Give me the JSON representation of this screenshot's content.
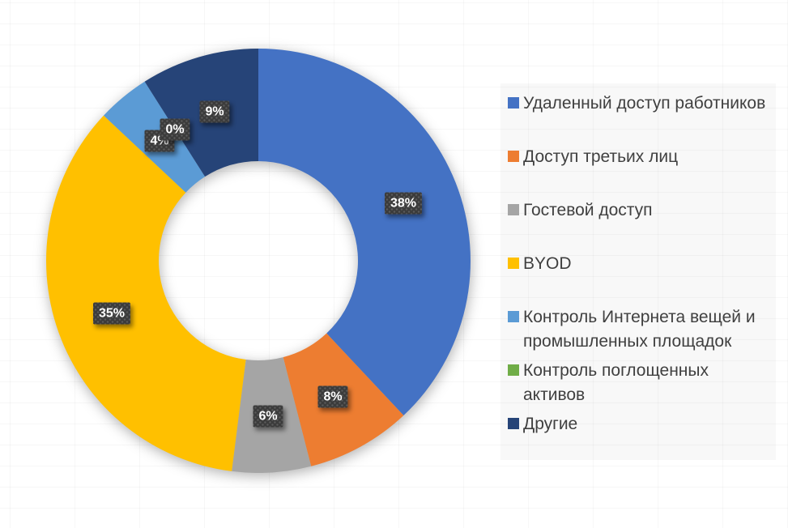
{
  "chart_data": {
    "type": "doughnut",
    "title": "",
    "legend_position": "right",
    "start_angle_deg": 0,
    "direction": "clockwise",
    "hole_ratio": 0.47,
    "categories": [
      "Удаленный доступ работников",
      "Доступ третьих лиц",
      "Гостевой доступ",
      "BYOD",
      "Контроль Интернета вещей и промышленных площадок",
      "Контроль поглощенных активов",
      "Другие"
    ],
    "legend_display": [
      "Удаленный доступ работников",
      "Доступ третьих лиц",
      "Гостевой доступ",
      "BYOD",
      "Контроль Интернета вещей и\nпромышленных площадок",
      "Контроль поглощенных\nактивов",
      "Другие"
    ],
    "values": [
      38,
      8,
      6,
      35,
      4,
      0,
      9
    ],
    "data_labels": [
      "38%",
      "8%",
      "6%",
      "35%",
      "4%",
      "0%",
      "9%"
    ],
    "colors": [
      "#4472C4",
      "#ED7D31",
      "#A5A5A5",
      "#FFC000",
      "#5B9BD5",
      "#70AD47",
      "#264478"
    ]
  },
  "style": {
    "label_chip_background": "#3B3B3B",
    "label_text_color": "#FFFFFF",
    "legend_text_color": "#404040",
    "page_background": "#FFFFFF"
  }
}
